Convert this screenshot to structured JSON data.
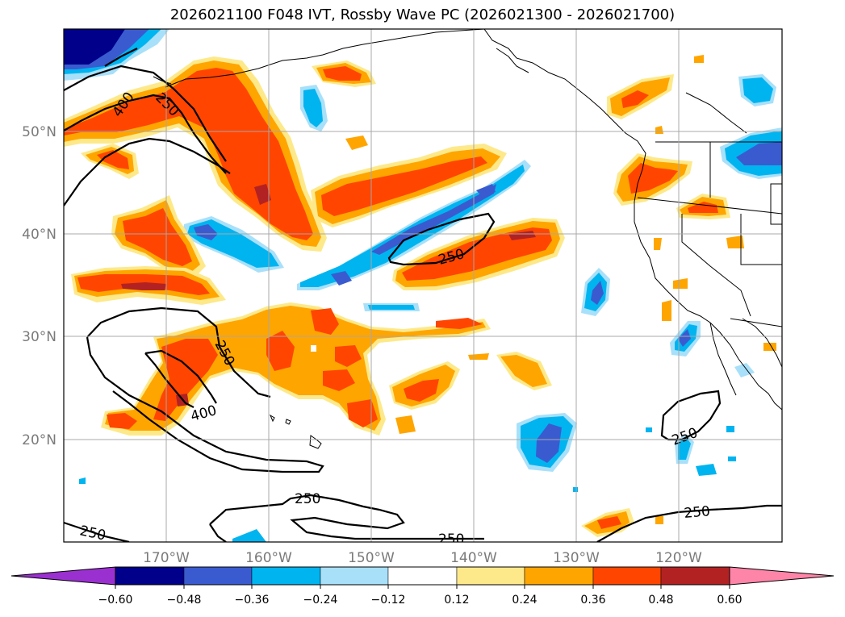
{
  "title": "2026021100 F048 IVT, Rossby Wave PC (2026021300 - 2026021700)",
  "lat_labels": [
    "50°N",
    "40°N",
    "30°N",
    "20°N"
  ],
  "lon_labels": [
    "170°W",
    "160°W",
    "150°W",
    "140°W",
    "130°W",
    "120°W"
  ],
  "colorbar": {
    "ticks": [
      "−0.60",
      "−0.48",
      "−0.36",
      "−0.24",
      "−0.12",
      "0.12",
      "0.24",
      "0.36",
      "0.48",
      "0.60"
    ],
    "colors": [
      "#9b30d0",
      "#00008b",
      "#3a5bd0",
      "#00b4f0",
      "#a8e0fa",
      "#ffffff",
      "#fde98a",
      "#ffa500",
      "#ff4500",
      "#b22222",
      "#ff85a8"
    ]
  },
  "contour_labels": {
    "c400_nw": "400",
    "c250_nw": "250",
    "c250_mid": "250",
    "c250_sw": "250",
    "c400_sw": "400",
    "c250_s1": "250",
    "c250_s2": "250",
    "c250_s3": "250",
    "c250_se1": "250",
    "c250_se2": "250"
  }
}
